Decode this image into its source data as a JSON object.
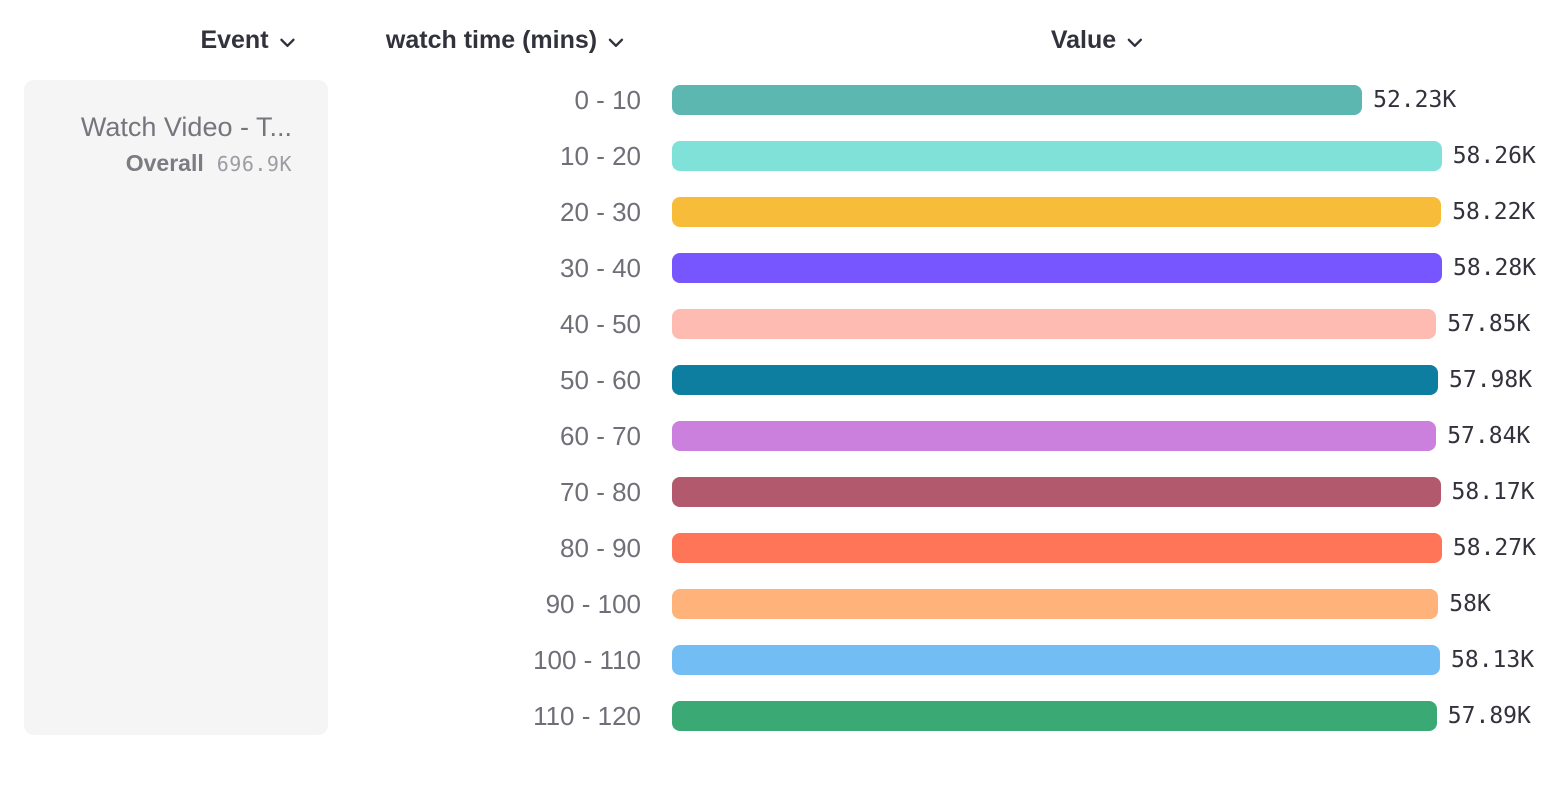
{
  "header": {
    "columns": [
      {
        "label": "Event"
      },
      {
        "label": "watch time (mins)"
      },
      {
        "label": "Value"
      }
    ]
  },
  "event_panel": {
    "event_name": "Watch Video - T...",
    "overall_label": "Overall",
    "overall_value": "696.9K"
  },
  "chart_data": {
    "type": "bar",
    "orientation": "horizontal",
    "title": "",
    "xlabel": "Value",
    "ylabel": "watch time (mins)",
    "categories": [
      "0 - 10",
      "10 - 20",
      "20 - 30",
      "30 - 40",
      "40 - 50",
      "50 - 60",
      "60 - 70",
      "70 - 80",
      "80 - 90",
      "90 - 100",
      "100 - 110",
      "110 - 120"
    ],
    "values": [
      52230,
      58260,
      58220,
      58280,
      57850,
      57980,
      57840,
      58170,
      58270,
      58000,
      58130,
      57890
    ],
    "value_labels": [
      "52.23K",
      "58.26K",
      "58.22K",
      "58.28K",
      "57.85K",
      "57.98K",
      "57.84K",
      "58.17K",
      "58.27K",
      "58K",
      "58.13K",
      "57.89K"
    ],
    "colors": [
      "#5BB7AF",
      "#80E1D9",
      "#F8BC3B",
      "#7856FF",
      "#FEBBB2",
      "#0D7EA0",
      "#CA80DC",
      "#B2596E",
      "#FF7557",
      "#FFB27A",
      "#72BEF4",
      "#3BA974"
    ],
    "xlim": [
      0,
      58280
    ],
    "grid": false,
    "legend": false,
    "overall_total": "696.9K"
  },
  "icons": {
    "chevron_down": "chevron-down"
  },
  "theme": {
    "header_text": "#32323C",
    "bucket_label_text": "#6F6F78",
    "value_text": "#32323C",
    "event_name_text": "#75757B",
    "overall_value_text": "#9C9CA3",
    "panel_bg": "#F5F5F6",
    "page_bg": "#FFFFFF"
  }
}
